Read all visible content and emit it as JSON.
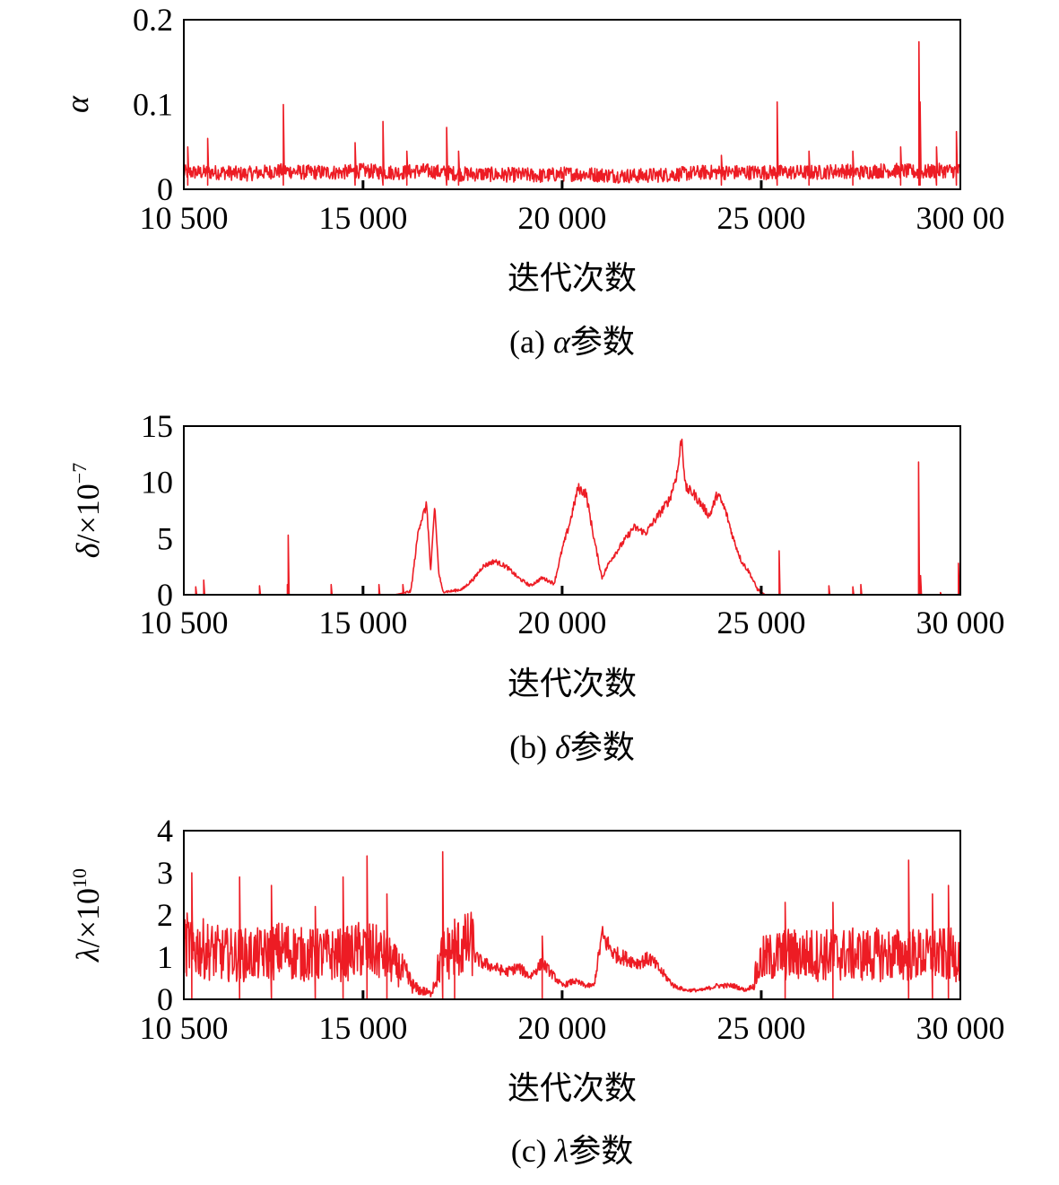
{
  "colors": {
    "trace": "#ed1c24",
    "frame": "#000000"
  },
  "chart_data": [
    {
      "type": "line",
      "panel": "a",
      "xlabel": "迭代次数",
      "ylabel_symbol": "α",
      "ylabel_unit": "",
      "ylabel_exp": "",
      "caption_prefix": "(a) ",
      "caption_symbol": "α",
      "caption_suffix": "参数",
      "xlim": [
        10500,
        30000
      ],
      "ylim": [
        0,
        0.2
      ],
      "x_ticks": [
        10500,
        15000,
        20000,
        25000,
        30000
      ],
      "x_tick_labels": [
        "10 500",
        "15 000",
        "20 000",
        "25 000",
        "300 00"
      ],
      "y_ticks": [
        0,
        0.1,
        0.2
      ],
      "y_tick_labels": [
        "0",
        "0.1",
        "0.2"
      ],
      "grid": false,
      "series": [
        {
          "x": [
            10500,
            11000,
            11500,
            12000,
            12500,
            13000,
            13500,
            14000,
            14500,
            15000,
            15500,
            16000,
            16500,
            17000,
            17500,
            18000,
            18500,
            19000,
            19500,
            20000,
            20500,
            21000,
            21500,
            22000,
            22500,
            23000,
            23500,
            24000,
            24500,
            25000,
            25500,
            26000,
            26500,
            27000,
            27500,
            28000,
            28500,
            29000,
            29500,
            30000
          ],
          "y": [
            0.02,
            0.02,
            0.02,
            0.018,
            0.02,
            0.022,
            0.02,
            0.02,
            0.02,
            0.022,
            0.02,
            0.02,
            0.022,
            0.02,
            0.018,
            0.018,
            0.017,
            0.017,
            0.016,
            0.018,
            0.018,
            0.017,
            0.016,
            0.016,
            0.017,
            0.018,
            0.02,
            0.02,
            0.02,
            0.02,
            0.02,
            0.02,
            0.02,
            0.022,
            0.02,
            0.022,
            0.022,
            0.02,
            0.022,
            0.022
          ],
          "spikes": [
            [
              10600,
              0.05
            ],
            [
              11100,
              0.06
            ],
            [
              13000,
              0.1
            ],
            [
              14800,
              0.055
            ],
            [
              15500,
              0.08
            ],
            [
              16100,
              0.045
            ],
            [
              17100,
              0.073
            ],
            [
              17400,
              0.045
            ],
            [
              24000,
              0.04
            ],
            [
              25400,
              0.103
            ],
            [
              26200,
              0.045
            ],
            [
              27300,
              0.045
            ],
            [
              28500,
              0.05
            ],
            [
              28960,
              0.174
            ],
            [
              28990,
              0.103
            ],
            [
              29400,
              0.05
            ],
            [
              29900,
              0.068
            ]
          ]
        }
      ]
    },
    {
      "type": "line",
      "panel": "b",
      "xlabel": "迭代次数",
      "ylabel_symbol": "δ",
      "ylabel_unit": "/×10",
      "ylabel_exp": "−7",
      "caption_prefix": "(b) ",
      "caption_symbol": "δ",
      "caption_suffix": "参数",
      "xlim": [
        10500,
        30000
      ],
      "ylim": [
        0,
        15
      ],
      "x_ticks": [
        10500,
        15000,
        20000,
        25000,
        30000
      ],
      "x_tick_labels": [
        "10 500",
        "15 000",
        "20 000",
        "25 000",
        "30 000"
      ],
      "y_ticks": [
        0,
        5,
        10,
        15
      ],
      "y_tick_labels": [
        "0",
        "5",
        "10",
        "15"
      ],
      "grid": false,
      "series": [
        {
          "x": [
            10500,
            12000,
            14000,
            15800,
            16200,
            16400,
            16600,
            16700,
            16800,
            16900,
            17000,
            17200,
            17500,
            17800,
            18000,
            18300,
            18600,
            18900,
            19200,
            19500,
            19800,
            20000,
            20200,
            20400,
            20600,
            20800,
            21000,
            21200,
            21500,
            21800,
            22100,
            22400,
            22700,
            22900,
            23000,
            23100,
            23300,
            23500,
            23700,
            23900,
            24100,
            24300,
            24500,
            24700,
            24900,
            25100,
            30000
          ],
          "y": [
            0,
            0,
            0,
            0,
            0.3,
            6,
            8,
            2,
            8,
            2,
            0.3,
            0.3,
            0.5,
            1.5,
            2.5,
            3,
            2.5,
            1.5,
            0.8,
            1.5,
            1,
            4,
            6.5,
            9.5,
            9,
            5,
            1.5,
            3,
            4.5,
            6,
            5.5,
            7,
            8.5,
            11,
            14,
            9.5,
            9,
            8,
            7,
            9,
            7.5,
            5,
            3,
            2,
            0.5,
            0,
            0
          ],
          "spikes": [
            [
              10800,
              0.7
            ],
            [
              11000,
              1.3
            ],
            [
              12400,
              0.8
            ],
            [
              13100,
              0.9
            ],
            [
              13120,
              5.3
            ],
            [
              14200,
              0.9
            ],
            [
              15400,
              0.9
            ],
            [
              16000,
              0.9
            ],
            [
              25450,
              3.9
            ],
            [
              26700,
              0.8
            ],
            [
              27300,
              0.7
            ],
            [
              27500,
              0.9
            ],
            [
              28950,
              11.8
            ],
            [
              29000,
              1.7
            ],
            [
              29500,
              0.2
            ],
            [
              29950,
              2.8
            ]
          ]
        }
      ]
    },
    {
      "type": "line",
      "panel": "c",
      "xlabel": "迭代次数",
      "ylabel_symbol": "λ",
      "ylabel_unit": "/×10",
      "ylabel_exp": "10",
      "caption_prefix": "(c) ",
      "caption_symbol": "λ",
      "caption_suffix": "参数",
      "xlim": [
        10500,
        30000
      ],
      "ylim": [
        0,
        4
      ],
      "x_ticks": [
        10500,
        15000,
        20000,
        25000,
        30000
      ],
      "x_tick_labels": [
        "10 500",
        "15 000",
        "20 000",
        "25 000",
        "30 000"
      ],
      "y_ticks": [
        0,
        1,
        2,
        3,
        4
      ],
      "y_tick_labels": [
        "0",
        "1",
        "2",
        "3",
        "4"
      ],
      "grid": false,
      "series": [
        {
          "x": [
            10500,
            11000,
            11500,
            12000,
            12500,
            13000,
            13500,
            14000,
            14500,
            15000,
            15500,
            16000,
            16300,
            16700,
            17000,
            17300,
            17700,
            18000,
            18300,
            18600,
            18900,
            19200,
            19500,
            19800,
            20000,
            20300,
            20600,
            20800,
            21000,
            21300,
            21600,
            21900,
            22200,
            22500,
            22800,
            23100,
            23500,
            23900,
            24300,
            24600,
            24800,
            25000,
            25500,
            26000,
            26500,
            27000,
            27500,
            28000,
            28500,
            29000,
            29500,
            30000
          ],
          "y": [
            1.0,
            0.9,
            0.8,
            0.8,
            0.8,
            0.9,
            0.8,
            0.8,
            0.8,
            0.9,
            0.8,
            0.5,
            0.2,
            0.1,
            0.8,
            0.9,
            1.0,
            0.8,
            0.7,
            0.6,
            0.7,
            0.5,
            0.8,
            0.5,
            0.3,
            0.4,
            0.3,
            0.3,
            1.4,
            1.0,
            0.9,
            0.8,
            0.9,
            0.6,
            0.3,
            0.2,
            0.2,
            0.3,
            0.3,
            0.2,
            0.3,
            0.7,
            0.8,
            0.8,
            0.8,
            0.8,
            0.8,
            0.8,
            0.8,
            0.8,
            0.8,
            0.8
          ],
          "spikes": [
            [
              10700,
              3.0
            ],
            [
              11900,
              2.9
            ],
            [
              12700,
              2.7
            ],
            [
              13800,
              2.2
            ],
            [
              14500,
              2.9
            ],
            [
              15100,
              3.4
            ],
            [
              15600,
              2.5
            ],
            [
              17000,
              3.5
            ],
            [
              17300,
              1.9
            ],
            [
              19500,
              1.5
            ],
            [
              25600,
              2.3
            ],
            [
              26800,
              2.3
            ],
            [
              28700,
              3.3
            ],
            [
              29300,
              2.5
            ],
            [
              29700,
              2.7
            ]
          ]
        }
      ]
    }
  ]
}
